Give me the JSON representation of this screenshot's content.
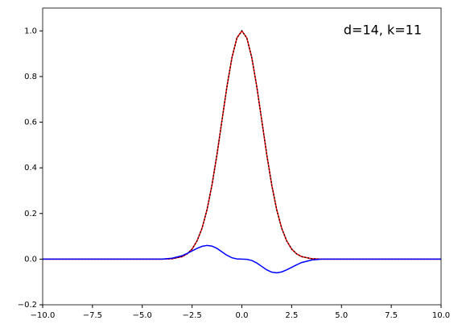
{
  "chart_data": {
    "type": "line",
    "annotation": "d=14, k=11",
    "x": [
      -10,
      -8,
      -6,
      -5,
      -4,
      -3.5,
      -3,
      -2.75,
      -2.5,
      -2.25,
      -2,
      -1.75,
      -1.5,
      -1.25,
      -1,
      -0.75,
      -0.5,
      -0.25,
      0,
      0.25,
      0.5,
      0.75,
      1,
      1.25,
      1.5,
      1.75,
      2,
      2.25,
      2.5,
      2.75,
      3,
      3.5,
      4,
      5,
      6,
      8,
      10
    ],
    "series": [
      {
        "color": "#ff0000",
        "linestyle": "solid",
        "values": [
          0,
          0,
          0,
          0,
          0,
          0.002,
          0.011,
          0.023,
          0.044,
          0.08,
          0.135,
          0.216,
          0.325,
          0.458,
          0.607,
          0.755,
          0.882,
          0.969,
          1,
          0.969,
          0.882,
          0.755,
          0.607,
          0.458,
          0.325,
          0.216,
          0.135,
          0.08,
          0.044,
          0.023,
          0.011,
          0.002,
          0,
          0,
          0,
          0,
          0
        ]
      },
      {
        "color": "#000000",
        "linestyle": "dotted",
        "values": [
          0,
          0,
          0,
          0,
          0,
          0.002,
          0.011,
          0.023,
          0.044,
          0.08,
          0.135,
          0.216,
          0.325,
          0.458,
          0.607,
          0.755,
          0.882,
          0.969,
          1,
          0.969,
          0.882,
          0.755,
          0.607,
          0.458,
          0.325,
          0.216,
          0.135,
          0.08,
          0.044,
          0.023,
          0.011,
          0.002,
          0,
          0,
          0,
          0,
          0
        ]
      },
      {
        "color": "#0000ff",
        "linestyle": "solid",
        "values": [
          0,
          0,
          0,
          0,
          0,
          0.004,
          0.015,
          0.025,
          0.036,
          0.047,
          0.056,
          0.06,
          0.057,
          0.047,
          0.032,
          0.017,
          0.006,
          0.001,
          0,
          -0.001,
          -0.006,
          -0.017,
          -0.032,
          -0.047,
          -0.057,
          -0.06,
          -0.056,
          -0.047,
          -0.036,
          -0.025,
          -0.015,
          -0.004,
          0,
          0,
          0,
          0,
          0
        ]
      }
    ],
    "xlim": [
      -10,
      10
    ],
    "xticks": [
      {
        "value": -10,
        "label": "−10.0"
      },
      {
        "value": -7.5,
        "label": "−7.5"
      },
      {
        "value": -5,
        "label": "−5.0"
      },
      {
        "value": -2.5,
        "label": "−2.5"
      },
      {
        "value": 0,
        "label": "0.0"
      },
      2.5,
      {
        "value": 5,
        "label": "5.0"
      },
      7.5,
      {
        "value": 10,
        "label": "10.0"
      }
    ],
    "ylim": [
      -0.2,
      1.1
    ],
    "yticks": [
      {
        "value": -0.2,
        "label": "−0.2"
      },
      {
        "value": 0,
        "label": "0.0"
      },
      0.2,
      0.4,
      0.6,
      0.8,
      {
        "value": 1,
        "label": "1.0"
      }
    ]
  }
}
